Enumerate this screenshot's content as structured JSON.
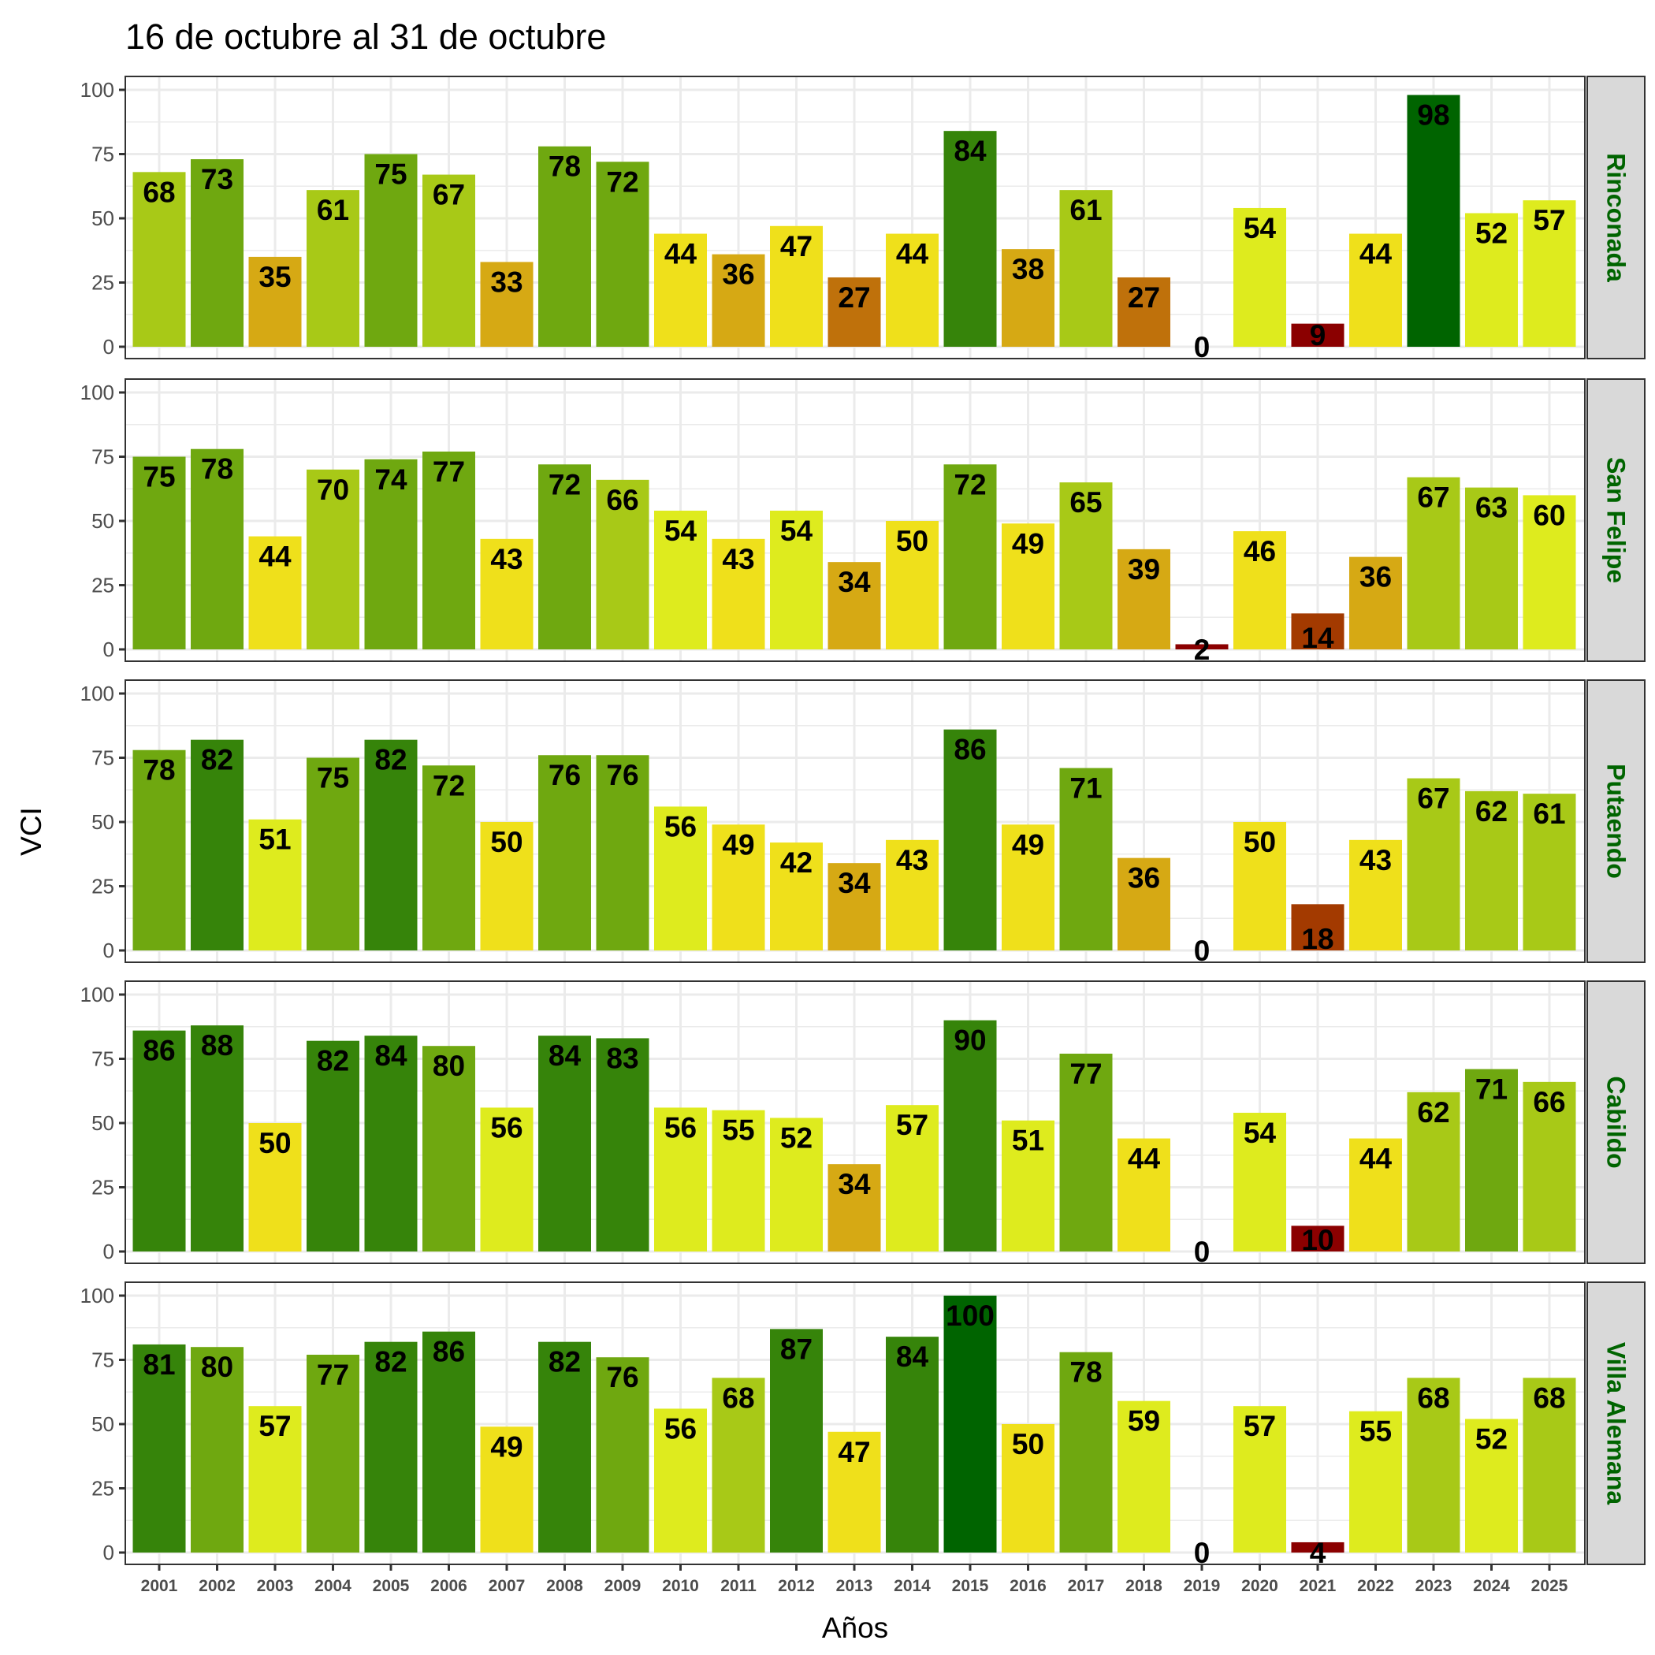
{
  "chart_data": {
    "type": "bar",
    "title": "16 de octubre al 31 de octubre",
    "xlabel": "Años",
    "ylabel": "VCI",
    "ylim": [
      0,
      100
    ],
    "yticks": [
      "0",
      "25",
      "50",
      "75",
      "100"
    ],
    "grid": true,
    "legend": "none",
    "facet_label_color": "#006400",
    "categories": [
      "2001",
      "2002",
      "2003",
      "2004",
      "2005",
      "2006",
      "2007",
      "2008",
      "2009",
      "2010",
      "2011",
      "2012",
      "2013",
      "2014",
      "2015",
      "2016",
      "2017",
      "2018",
      "2019",
      "2020",
      "2021",
      "2022",
      "2023",
      "2024",
      "2025"
    ],
    "color_scale": [
      {
        "range": "0-10",
        "color": "#8B0000"
      },
      {
        "range": "10-20",
        "color": "#A33A00"
      },
      {
        "range": "20-30",
        "color": "#BF710B"
      },
      {
        "range": "30-40",
        "color": "#D6A914"
      },
      {
        "range": "40-50",
        "color": "#EFE01B"
      },
      {
        "range": "50-60",
        "color": "#DEEB1E"
      },
      {
        "range": "60-70",
        "color": "#A8C917"
      },
      {
        "range": "70-80",
        "color": "#6FA810"
      },
      {
        "range": "80-90",
        "color": "#36840A"
      },
      {
        "range": "90-100",
        "color": "#006400"
      }
    ],
    "series": [
      {
        "name": "Rinconada",
        "values": [
          68,
          73,
          35,
          61,
          75,
          67,
          33,
          78,
          72,
          44,
          36,
          47,
          27,
          44,
          84,
          38,
          61,
          27,
          0,
          54,
          9,
          44,
          98,
          52,
          57
        ]
      },
      {
        "name": "San Felipe",
        "values": [
          75,
          78,
          44,
          70,
          74,
          77,
          43,
          72,
          66,
          54,
          43,
          54,
          34,
          50,
          72,
          49,
          65,
          39,
          2,
          46,
          14,
          36,
          67,
          63,
          60
        ]
      },
      {
        "name": "Putaendo",
        "values": [
          78,
          82,
          51,
          75,
          82,
          72,
          50,
          76,
          76,
          56,
          49,
          42,
          34,
          43,
          86,
          49,
          71,
          36,
          0,
          50,
          18,
          43,
          67,
          62,
          61
        ]
      },
      {
        "name": "Cabildo",
        "values": [
          86,
          88,
          50,
          82,
          84,
          80,
          56,
          84,
          83,
          56,
          55,
          52,
          34,
          57,
          90,
          51,
          77,
          44,
          0,
          54,
          10,
          44,
          62,
          71,
          66
        ]
      },
      {
        "name": "Villa Alemana",
        "values": [
          81,
          80,
          57,
          77,
          82,
          86,
          49,
          82,
          76,
          56,
          68,
          87,
          47,
          84,
          100,
          50,
          78,
          59,
          0,
          57,
          4,
          55,
          68,
          52,
          68
        ]
      }
    ]
  }
}
